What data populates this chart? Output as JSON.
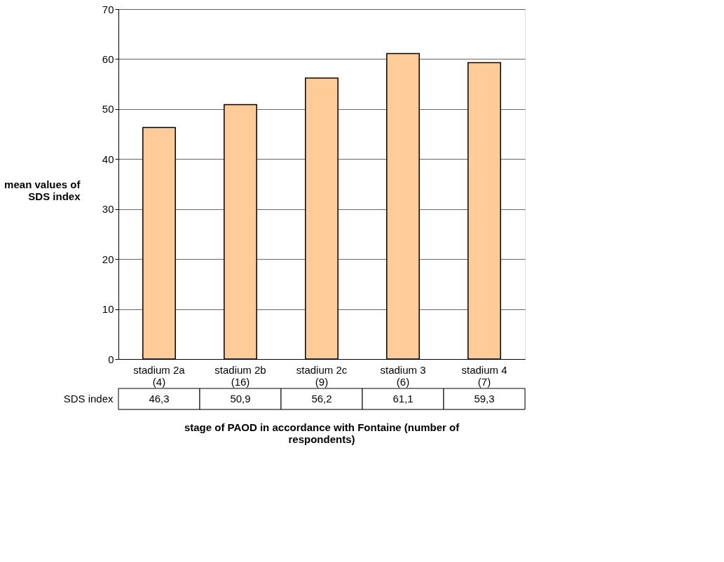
{
  "chart_data": {
    "type": "bar",
    "xlabel": "stage of PAOD in accordance with Fontaine (number of respondents)",
    "ylabel": "mean values of SDS index",
    "categories": [
      "stadium 2a (4)",
      "stadium 2b (16)",
      "stadium 2c (9)",
      "stadium 3 (6)",
      "stadium 4 (7)"
    ],
    "series": [
      {
        "name": "SDS index",
        "color": "#ffcc99",
        "values": [
          46.3,
          50.9,
          56.2,
          61.1,
          59.3
        ],
        "value_labels": [
          "46,3",
          "50,9",
          "56,2",
          "61,1",
          "59,3"
        ]
      }
    ],
    "ylim": [
      0,
      70
    ],
    "yticks": [
      0,
      10,
      20,
      30,
      40,
      50,
      60,
      70
    ],
    "grid": "y",
    "legend": false
  }
}
